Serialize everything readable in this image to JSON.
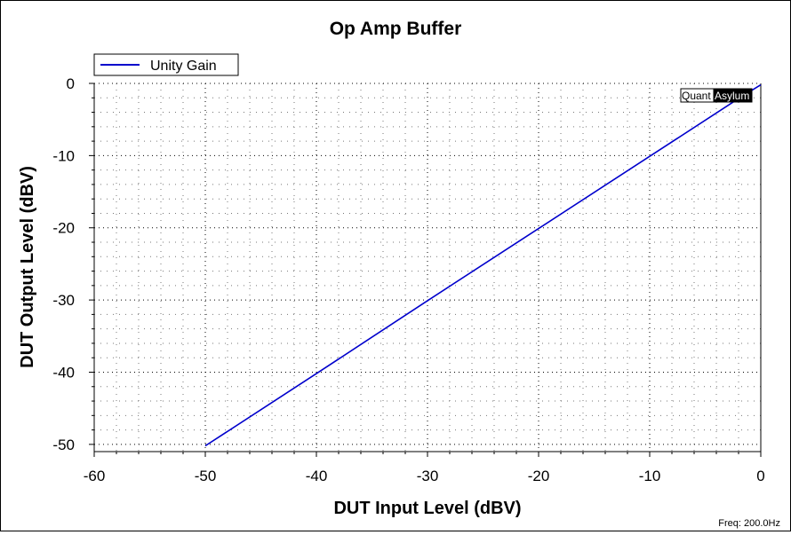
{
  "chart_data": {
    "type": "line",
    "title": "Op Amp Buffer",
    "xlabel": "DUT Input Level (dBV)",
    "ylabel": "DUT Output Level (dBV)",
    "xlim": [
      -60,
      0
    ],
    "ylim": [
      -51,
      0
    ],
    "xticks": [
      -60,
      -50,
      -40,
      -30,
      -20,
      -10,
      0
    ],
    "yticks": [
      0,
      -10,
      -20,
      -30,
      -40,
      -50
    ],
    "grid": true,
    "legend_position": "top-left",
    "series": [
      {
        "name": "Unity Gain",
        "color": "#0000cc",
        "x": [
          -50,
          -40,
          -30,
          -20,
          -10,
          -2,
          0
        ],
        "y": [
          -50.2,
          -40.2,
          -30.1,
          -20.1,
          -10.1,
          -2.1,
          -0.2
        ]
      }
    ]
  },
  "watermark": {
    "text_left": "Quant",
    "text_right": "Asylum"
  },
  "footer": {
    "frequency": "Freq: 200.0Hz"
  }
}
